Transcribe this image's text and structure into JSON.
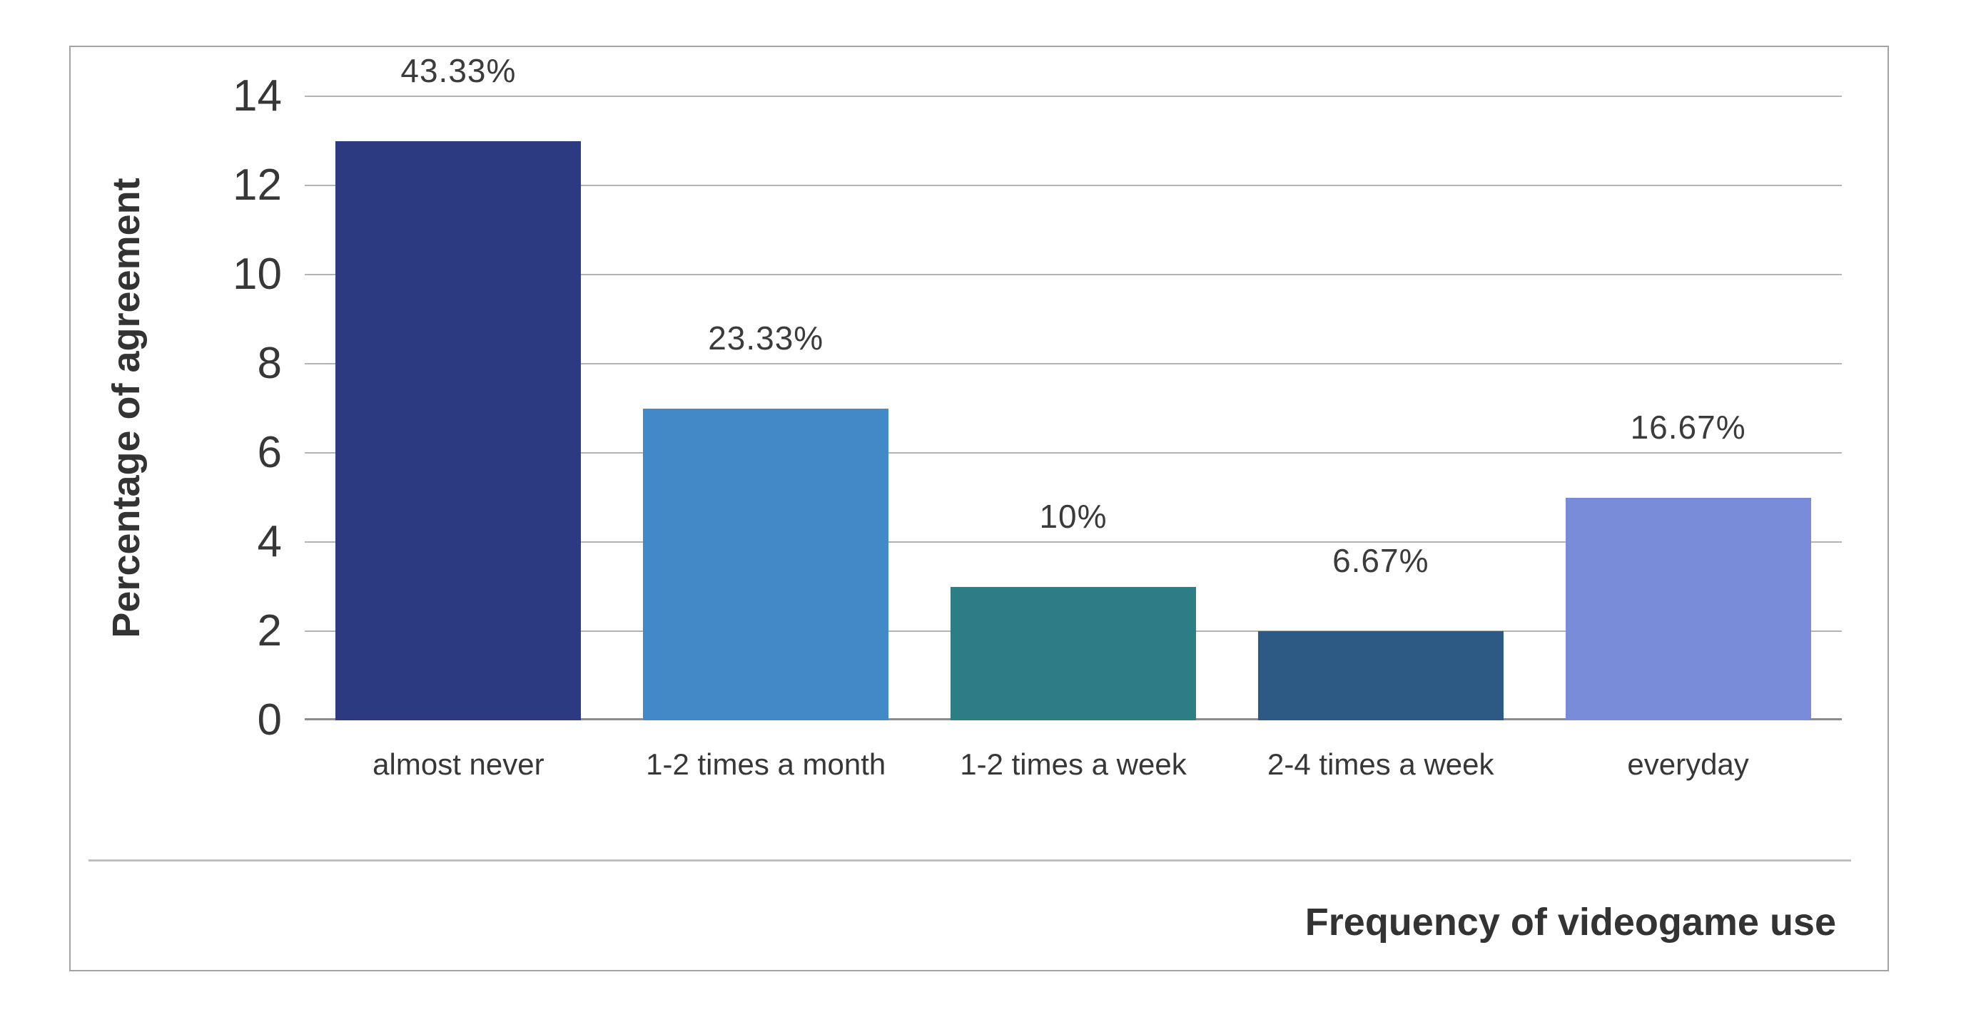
{
  "chart_data": {
    "type": "bar",
    "title": "",
    "categories": [
      "almost never",
      "1-2 times a month",
      "1-2 times a week",
      "2-4 times a week",
      "everyday"
    ],
    "values": [
      13,
      7,
      3,
      2,
      5
    ],
    "bar_labels": [
      "43.33%",
      "23.33%",
      "10%",
      "6.67%",
      "16.67%"
    ],
    "bar_colors": [
      "#2c3a82",
      "#4189c7",
      "#2c7d85",
      "#2d5a85",
      "#788cda"
    ],
    "xlabel": "Frequency of videogame use",
    "ylabel": "Percentage of agreement",
    "ylim": [
      0,
      14
    ],
    "yticks": [
      0,
      2,
      4,
      6,
      8,
      10,
      12,
      14
    ],
    "grid": true,
    "legend": "none"
  },
  "colors": {
    "gridline": "#b3b3b3",
    "axis_line": "#8c8c8c",
    "tick_text": "#373737",
    "label_text": "#3b3b3b",
    "title_text": "#333333",
    "panel_border": "#a3a3a3",
    "divider": "#bfbfbf",
    "background": "#ffffff"
  }
}
